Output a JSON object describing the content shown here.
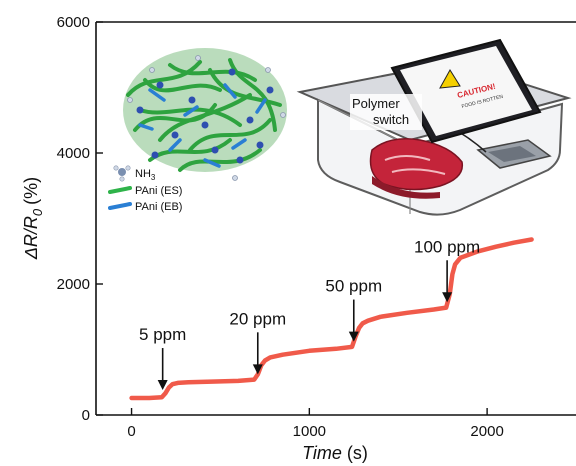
{
  "chart_data": {
    "type": "line",
    "xlabel": "Time",
    "xlabel_unit": "(s)",
    "ylabel_main": "ΔR/R",
    "ylabel_sub": "0",
    "ylabel_unit": "(%)",
    "xlim": [
      -200,
      2500
    ],
    "ylim": [
      0,
      6000
    ],
    "x_ticks": [
      0,
      1000,
      2000
    ],
    "x_tick_labels": [
      "0",
      "1000",
      "2000"
    ],
    "y_ticks": [
      0,
      2000,
      4000,
      6000
    ],
    "y_tick_labels": [
      "0",
      "2000",
      "4000",
      "6000"
    ],
    "grid": false,
    "series": [
      {
        "color": "#f05a4a",
        "x": [
          0,
          100,
          170,
          190,
          210,
          230,
          260,
          320,
          450,
          600,
          690,
          710,
          730,
          750,
          780,
          850,
          1000,
          1150,
          1240,
          1260,
          1280,
          1300,
          1330,
          1400,
          1550,
          1700,
          1770,
          1790,
          1805,
          1820,
          1850,
          1950,
          2050,
          2150,
          2250
        ],
        "y": [
          260,
          260,
          270,
          330,
          420,
          470,
          490,
          500,
          510,
          520,
          540,
          620,
          760,
          830,
          880,
          920,
          980,
          1010,
          1040,
          1200,
          1330,
          1400,
          1440,
          1500,
          1560,
          1610,
          1640,
          1850,
          2150,
          2300,
          2400,
          2500,
          2570,
          2630,
          2680
        ]
      }
    ],
    "annotations": [
      {
        "text": "5 ppm",
        "x": 175,
        "y": 320
      },
      {
        "text": "20 ppm",
        "x": 710,
        "y": 560
      },
      {
        "text": "50 ppm",
        "x": 1250,
        "y": 1060
      },
      {
        "text": "100 ppm",
        "x": 1775,
        "y": 1660
      }
    ]
  },
  "inset": {
    "legend": [
      {
        "label": "NH",
        "subscript": "3",
        "color": "#7a8fb0"
      },
      {
        "label": "PAni (ES)",
        "color": "#2fb34a"
      },
      {
        "label": "PAni (EB)",
        "color": "#2a7fd4"
      }
    ],
    "switch_label_line1": "Polymer",
    "switch_label_line2": "switch",
    "caution_text": "CAUTION!",
    "phone_subtext": "FOOD IS ROTTEN"
  }
}
